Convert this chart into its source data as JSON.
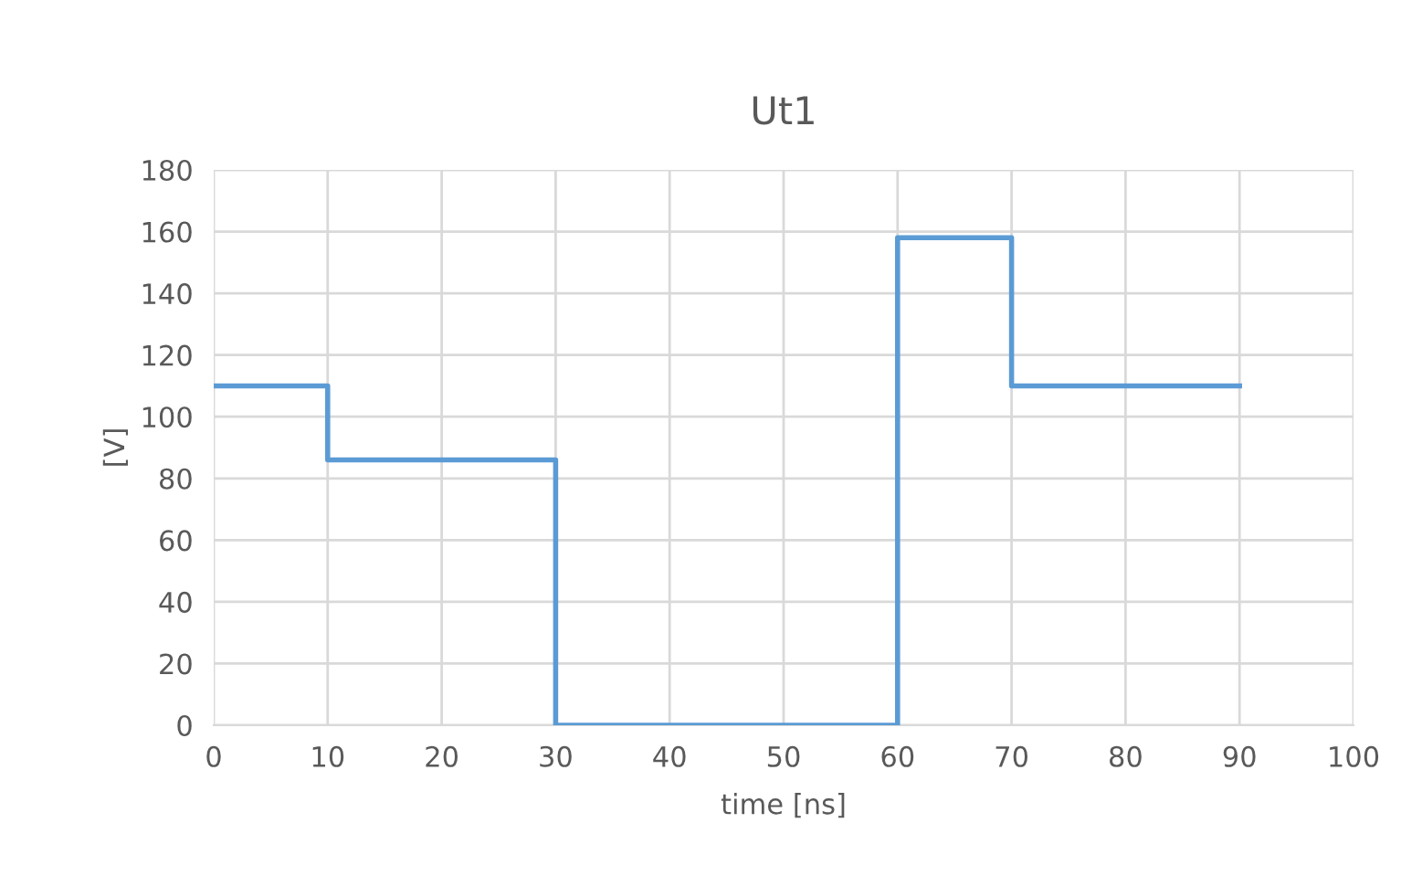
{
  "chart_data": {
    "type": "step",
    "title": "Ut1",
    "xlabel": "time [ns]",
    "ylabel": "[V]",
    "x": [
      0,
      10,
      30,
      60,
      70,
      90
    ],
    "series": [
      {
        "color": "#5b9bd5",
        "values": [
          110,
          86,
          0,
          158,
          110,
          110
        ]
      }
    ],
    "xlim": [
      0,
      100
    ],
    "xticks": [
      0,
      10,
      20,
      30,
      40,
      50,
      60,
      70,
      80,
      90,
      100
    ],
    "ylim": [
      0,
      180
    ],
    "yticks": [
      0,
      20,
      40,
      60,
      80,
      100,
      120,
      140,
      160,
      180
    ],
    "grid": true
  }
}
